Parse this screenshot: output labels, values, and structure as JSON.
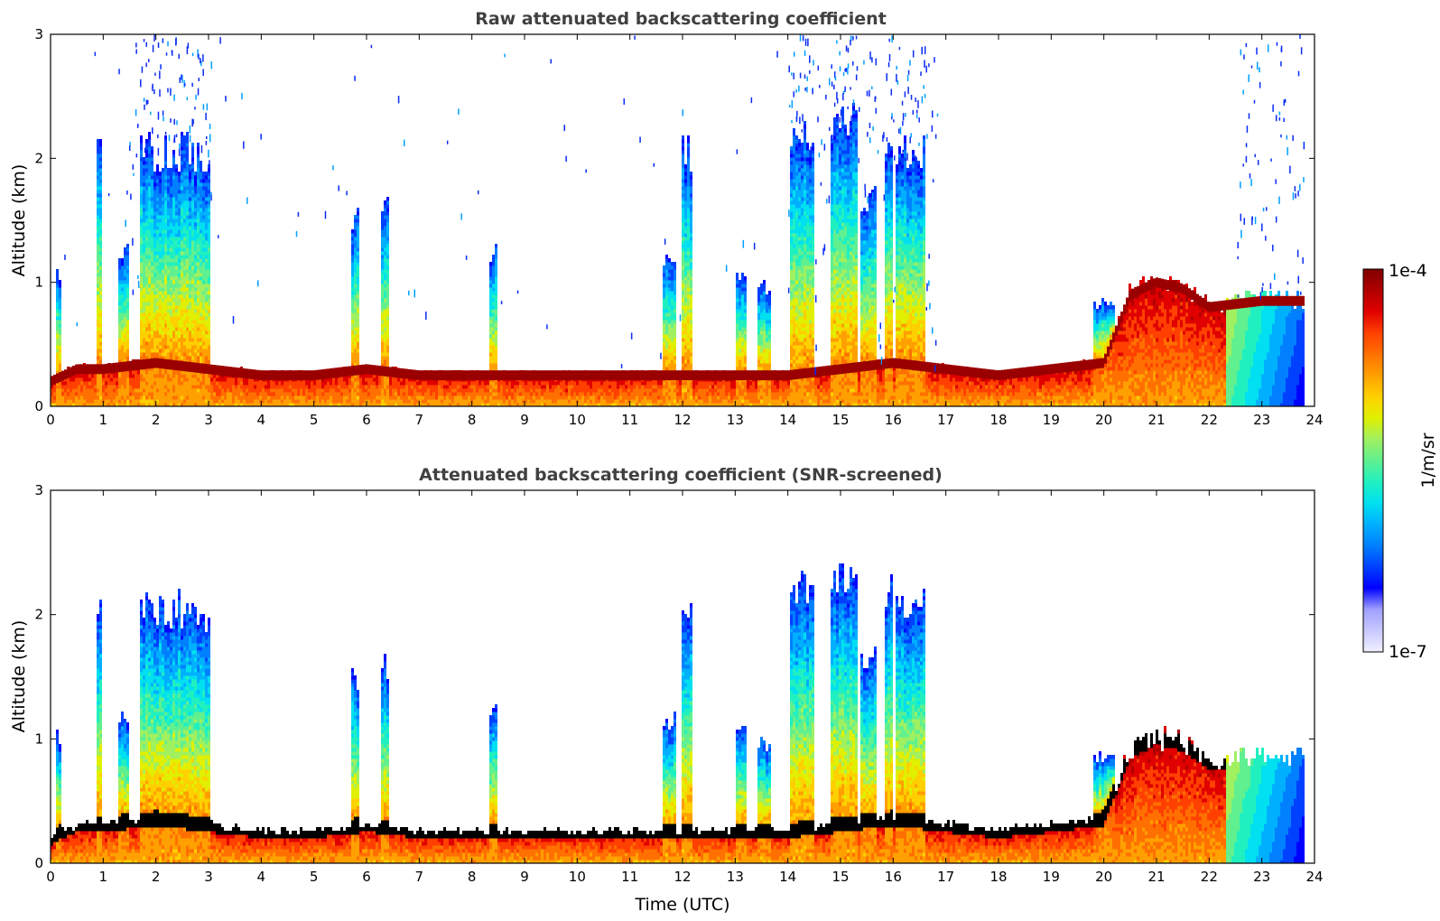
{
  "chart_data": [
    {
      "type": "heatmap",
      "title": "Raw attenuated backscattering coefficient",
      "xlabel": "",
      "ylabel": "Altitude (km)",
      "xlim": [
        0,
        24
      ],
      "ylim": [
        0,
        3
      ],
      "xticks": [
        "0",
        "1",
        "2",
        "3",
        "4",
        "5",
        "6",
        "7",
        "8",
        "9",
        "10",
        "11",
        "12",
        "13",
        "14",
        "15",
        "16",
        "17",
        "18",
        "19",
        "20",
        "21",
        "22",
        "23",
        "24"
      ],
      "yticks": [
        "0",
        "1",
        "2",
        "3"
      ],
      "boundary_layer_top_km": [
        [
          0,
          0.2
        ],
        [
          0.5,
          0.3
        ],
        [
          1,
          0.3
        ],
        [
          2,
          0.35
        ],
        [
          3,
          0.3
        ],
        [
          4,
          0.25
        ],
        [
          5,
          0.25
        ],
        [
          6,
          0.3
        ],
        [
          7,
          0.25
        ],
        [
          8,
          0.25
        ],
        [
          9,
          0.25
        ],
        [
          10,
          0.25
        ],
        [
          11,
          0.25
        ],
        [
          12,
          0.25
        ],
        [
          13,
          0.25
        ],
        [
          14,
          0.25
        ],
        [
          15,
          0.3
        ],
        [
          16,
          0.35
        ],
        [
          17,
          0.3
        ],
        [
          18,
          0.25
        ],
        [
          19,
          0.3
        ],
        [
          20,
          0.35
        ],
        [
          20.5,
          0.9
        ],
        [
          21,
          1.0
        ],
        [
          21.5,
          0.95
        ],
        [
          22,
          0.8
        ],
        [
          23,
          0.85
        ],
        [
          23.8,
          0.85
        ]
      ],
      "noise_regions": "scattered blue noise points above 1 km throughout the day, denser around 2–3 h, 14–17 h and 22.5–24 h"
    },
    {
      "type": "heatmap",
      "title": "Attenuated backscattering coefficient (SNR-screened)",
      "xlabel": "Time (UTC)",
      "ylabel": "Altitude (km)",
      "xlim": [
        0,
        24
      ],
      "ylim": [
        0,
        3
      ],
      "xticks": [
        "0",
        "1",
        "2",
        "3",
        "4",
        "5",
        "6",
        "7",
        "8",
        "9",
        "10",
        "11",
        "12",
        "13",
        "14",
        "15",
        "16",
        "17",
        "18",
        "19",
        "20",
        "21",
        "22",
        "23",
        "24"
      ],
      "yticks": [
        "0",
        "1",
        "2",
        "3"
      ],
      "boundary_layer_top_km": [
        [
          0,
          0.2
        ],
        [
          0.5,
          0.3
        ],
        [
          1,
          0.3
        ],
        [
          2,
          0.35
        ],
        [
          3,
          0.3
        ],
        [
          4,
          0.25
        ],
        [
          5,
          0.25
        ],
        [
          6,
          0.3
        ],
        [
          7,
          0.25
        ],
        [
          8,
          0.25
        ],
        [
          9,
          0.25
        ],
        [
          10,
          0.25
        ],
        [
          11,
          0.25
        ],
        [
          12,
          0.25
        ],
        [
          13,
          0.25
        ],
        [
          14,
          0.25
        ],
        [
          15,
          0.3
        ],
        [
          16,
          0.35
        ],
        [
          17,
          0.3
        ],
        [
          18,
          0.25
        ],
        [
          19,
          0.3
        ],
        [
          20,
          0.35
        ],
        [
          20.5,
          0.9
        ],
        [
          21,
          1.0
        ],
        [
          21.5,
          0.95
        ],
        [
          22,
          0.8
        ],
        [
          23,
          0.85
        ],
        [
          23.8,
          0.85
        ]
      ],
      "noise_regions": "noise removed; only signal above screening threshold is shown"
    }
  ],
  "shared": {
    "plume_events": [
      {
        "t0": 0.1,
        "t1": 0.2,
        "top": 1.1
      },
      {
        "t0": 0.85,
        "t1": 1.0,
        "top": 2.2
      },
      {
        "t0": 1.3,
        "t1": 1.5,
        "top": 1.3
      },
      {
        "t0": 1.7,
        "t1": 2.95,
        "top": 2.2
      },
      {
        "t0": 2.95,
        "t1": 3.05,
        "top": 2.0
      },
      {
        "t0": 5.7,
        "t1": 5.85,
        "top": 1.6
      },
      {
        "t0": 6.3,
        "t1": 6.45,
        "top": 1.7
      },
      {
        "t0": 8.35,
        "t1": 8.5,
        "top": 1.3
      },
      {
        "t0": 11.6,
        "t1": 11.9,
        "top": 1.2
      },
      {
        "t0": 12.0,
        "t1": 12.2,
        "top": 2.2
      },
      {
        "t0": 13.0,
        "t1": 13.2,
        "top": 1.1
      },
      {
        "t0": 13.4,
        "t1": 13.7,
        "top": 1.0
      },
      {
        "t0": 14.05,
        "t1": 14.5,
        "top": 2.4
      },
      {
        "t0": 14.8,
        "t1": 15.35,
        "top": 2.5
      },
      {
        "t0": 15.4,
        "t1": 15.7,
        "top": 1.8
      },
      {
        "t0": 15.85,
        "t1": 16.0,
        "top": 2.3
      },
      {
        "t0": 16.05,
        "t1": 16.6,
        "top": 2.2
      },
      {
        "t0": 19.8,
        "t1": 20.2,
        "top": 0.9
      }
    ]
  },
  "colorbar": {
    "max_label": "1e-4",
    "min_label": "1e-7",
    "unit_label": "1/m/sr",
    "colors": [
      "#f0f0ff",
      "#c8c8ff",
      "#a0a0ff",
      "#0000ff",
      "#0040ff",
      "#0080ff",
      "#00b0ff",
      "#00e0f0",
      "#20f0c0",
      "#60f090",
      "#a0f060",
      "#e0f000",
      "#ffd000",
      "#ffa000",
      "#ff7000",
      "#ff4000",
      "#e00000",
      "#b00000",
      "#800000"
    ]
  }
}
